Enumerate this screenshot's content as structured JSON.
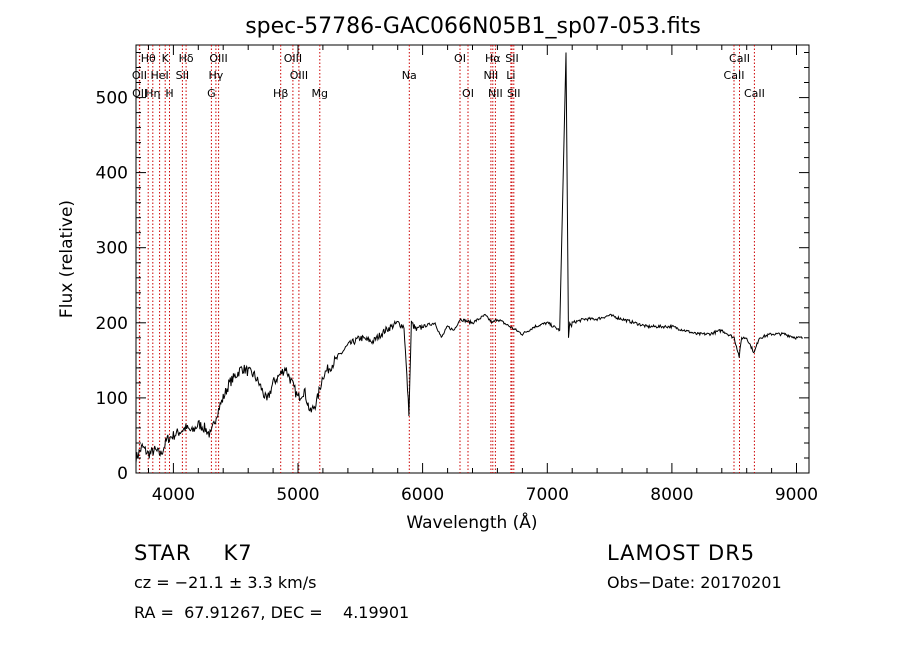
{
  "chart_data": {
    "type": "line",
    "title": "spec-57786-GAC066N05B1_sp07-053.fits",
    "xlabel": "Wavelength (Å)",
    "ylabel": "Flux (relative)",
    "xlim": [
      3700,
      9100
    ],
    "ylim": [
      0,
      570
    ],
    "xticks": [
      4000,
      5000,
      6000,
      7000,
      8000,
      9000
    ],
    "yticks": [
      0,
      100,
      200,
      300,
      400,
      500
    ],
    "line_color": "#000000",
    "marker_color": "#cc0000",
    "spectrum": {
      "x": [
        3700,
        3750,
        3800,
        3850,
        3900,
        3950,
        4000,
        4050,
        4100,
        4150,
        4200,
        4250,
        4300,
        4350,
        4400,
        4450,
        4500,
        4550,
        4600,
        4650,
        4700,
        4750,
        4800,
        4850,
        4900,
        4950,
        5000,
        5050,
        5100,
        5150,
        5200,
        5250,
        5300,
        5350,
        5400,
        5500,
        5600,
        5700,
        5800,
        5850,
        5890,
        5910,
        5950,
        6000,
        6100,
        6150,
        6200,
        6250,
        6300,
        6400,
        6500,
        6560,
        6600,
        6700,
        6800,
        6900,
        7000,
        7100,
        7150,
        7170,
        7180,
        7195,
        7200,
        7300,
        7400,
        7500,
        7600,
        7700,
        7800,
        7900,
        8000,
        8100,
        8200,
        8300,
        8400,
        8500,
        8540,
        8560,
        8600,
        8660,
        8700,
        8800,
        8900,
        9000,
        9050
      ],
      "y": [
        20,
        35,
        25,
        30,
        25,
        45,
        50,
        55,
        60,
        55,
        65,
        60,
        50,
        80,
        100,
        120,
        130,
        140,
        135,
        130,
        115,
        95,
        120,
        130,
        140,
        120,
        100,
        110,
        80,
        95,
        130,
        140,
        150,
        160,
        170,
        180,
        175,
        190,
        200,
        195,
        80,
        200,
        190,
        195,
        200,
        180,
        195,
        190,
        205,
        200,
        210,
        200,
        205,
        195,
        185,
        195,
        200,
        190,
        560,
        180,
        200,
        195,
        200,
        205,
        205,
        210,
        205,
        200,
        195,
        195,
        195,
        190,
        185,
        185,
        190,
        180,
        155,
        180,
        180,
        160,
        180,
        185,
        185,
        180,
        180
      ]
    },
    "lines": [
      {
        "label": "Hθ",
        "wl": 3798,
        "row": 0
      },
      {
        "label": "OII",
        "wl": 3727,
        "row": 1
      },
      {
        "label": "OII",
        "wl": 3730,
        "row": 2
      },
      {
        "label": "Hη",
        "wl": 3835,
        "row": 2
      },
      {
        "label": "HeI",
        "wl": 3889,
        "row": 1
      },
      {
        "label": "K",
        "wl": 3934,
        "row": 0
      },
      {
        "label": "H",
        "wl": 3969,
        "row": 2
      },
      {
        "label": "SII",
        "wl": 4072,
        "row": 1
      },
      {
        "label": "Hδ",
        "wl": 4102,
        "row": 0
      },
      {
        "label": "OIII",
        "wl": 4363,
        "row": 0
      },
      {
        "label": "Hγ",
        "wl": 4341,
        "row": 1
      },
      {
        "label": "G",
        "wl": 4305,
        "row": 2
      },
      {
        "label": "Hβ",
        "wl": 4861,
        "row": 2
      },
      {
        "label": "OIII",
        "wl": 4959,
        "row": 0
      },
      {
        "label": "OIII",
        "wl": 5007,
        "row": 1
      },
      {
        "label": "Mg",
        "wl": 5175,
        "row": 2
      },
      {
        "label": "Na",
        "wl": 5893,
        "row": 1
      },
      {
        "label": "OI",
        "wl": 6300,
        "row": 0
      },
      {
        "label": "OI",
        "wl": 6364,
        "row": 2
      },
      {
        "label": "Hα",
        "wl": 6563,
        "row": 0
      },
      {
        "label": "NII",
        "wl": 6548,
        "row": 1
      },
      {
        "label": "NII",
        "wl": 6584,
        "row": 2
      },
      {
        "label": "SII",
        "wl": 6717,
        "row": 0
      },
      {
        "label": "Li",
        "wl": 6708,
        "row": 1
      },
      {
        "label": "SII",
        "wl": 6731,
        "row": 2
      },
      {
        "label": "CaII",
        "wl": 8498,
        "row": 1
      },
      {
        "label": "CaII",
        "wl": 8542,
        "row": 0
      },
      {
        "label": "CaII",
        "wl": 8662,
        "row": 2
      }
    ]
  },
  "info": {
    "class": "STAR",
    "subclass": "K7",
    "survey": "LAMOST DR5",
    "cz": "cz = −21.1 ± 3.3 km/s",
    "obs_date": "Obs−Date: 20170201",
    "radec": "RA =  67.91267, DEC =    4.19901"
  }
}
